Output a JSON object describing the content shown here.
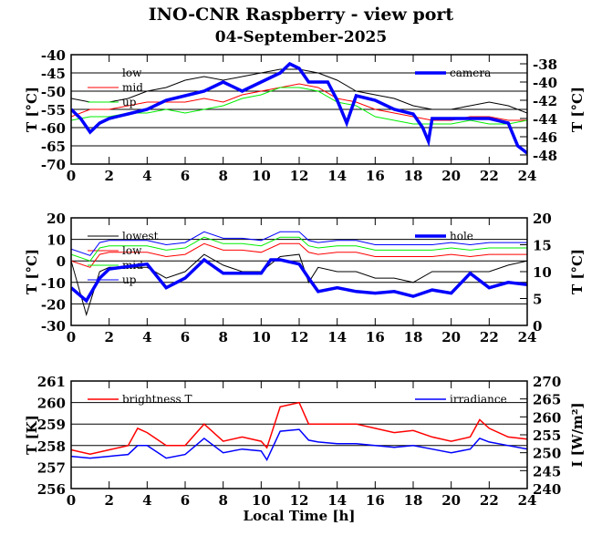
{
  "title": "INO-CNR Raspberry - view port",
  "subtitle": "04-September-2025",
  "chart_data": [
    {
      "type": "line",
      "xlabel": "",
      "ylabel": "T [°C]",
      "ylabel_right": "T [°C]",
      "xlim": [
        0,
        24
      ],
      "ylim": [
        -70,
        -40
      ],
      "ylim_right": [
        -49,
        -37
      ],
      "xticks": [
        0,
        2,
        4,
        6,
        8,
        10,
        12,
        14,
        16,
        18,
        20,
        22,
        24
      ],
      "yticks": [
        -70,
        -65,
        -60,
        -55,
        -50,
        -45,
        -40
      ],
      "yticks_right": [
        -48,
        -46,
        -44,
        -42,
        -40,
        -38
      ],
      "grid": "horizontal",
      "series": [
        {
          "name": "low",
          "axis": "left",
          "color": "#000000",
          "width": 1,
          "legend": "left",
          "x": [
            0,
            1,
            2,
            3,
            4,
            5,
            6,
            7,
            8,
            9,
            10,
            11,
            12,
            13,
            14,
            15,
            16,
            17,
            18,
            19,
            20,
            21,
            22,
            23,
            24
          ],
          "y": [
            -52,
            -53,
            -53,
            -52,
            -50,
            -49,
            -47,
            -46,
            -47,
            -46,
            -45,
            -44,
            -44,
            -45,
            -47,
            -50,
            -51,
            -52,
            -54,
            -55,
            -55,
            -54,
            -53,
            -54,
            -56
          ]
        },
        {
          "name": "mid",
          "axis": "left",
          "color": "#ff0000",
          "width": 1,
          "legend": "left",
          "x": [
            0,
            1,
            2,
            3,
            4,
            5,
            6,
            7,
            8,
            9,
            10,
            11,
            12,
            13,
            14,
            15,
            16,
            17,
            18,
            19,
            20,
            21,
            22,
            23,
            24
          ],
          "y": [
            -57,
            -55,
            -55,
            -54,
            -53,
            -53,
            -53,
            -52,
            -53,
            -51,
            -50,
            -49,
            -48,
            -49,
            -52,
            -53,
            -55,
            -56,
            -57,
            -58,
            -58,
            -57,
            -57,
            -58,
            -58
          ]
        },
        {
          "name": "up",
          "axis": "left",
          "color": "#00ee00",
          "width": 1,
          "legend": "left",
          "x": [
            0,
            1,
            2,
            3,
            4,
            5,
            6,
            7,
            8,
            9,
            10,
            11,
            12,
            13,
            14,
            15,
            16,
            17,
            18,
            19,
            20,
            21,
            22,
            23,
            24
          ],
          "y": [
            -58,
            -57,
            -57,
            -56,
            -56,
            -55,
            -56,
            -55,
            -54,
            -52,
            -51,
            -49,
            -49,
            -50,
            -53,
            -54,
            -57,
            -58,
            -59,
            -59,
            -59,
            -58,
            -59,
            -59,
            -58
          ]
        },
        {
          "name": "camera",
          "axis": "right",
          "color": "#0000ff",
          "width": 3.5,
          "legend": "right",
          "x": [
            0,
            0.5,
            1,
            1.5,
            2,
            3,
            4,
            5,
            6,
            7,
            8,
            9,
            10,
            11,
            11.5,
            12,
            12.5,
            13,
            13.5,
            14,
            14.5,
            15,
            16,
            17,
            18,
            18.5,
            18.8,
            19,
            19.5,
            20,
            21,
            22,
            23,
            23.5,
            24
          ],
          "y": [
            -43,
            -44,
            -45.5,
            -44.5,
            -44,
            -43.5,
            -43,
            -42,
            -41.5,
            -41,
            -40,
            -41,
            -40,
            -39,
            -38,
            -38.5,
            -40,
            -40,
            -40,
            -42,
            -44.5,
            -41.5,
            -42,
            -43,
            -43.5,
            -45,
            -46.5,
            -44,
            -44,
            -44,
            -44,
            -44,
            -44.5,
            -47,
            -47.8
          ]
        }
      ]
    },
    {
      "type": "line",
      "xlabel": "",
      "ylabel": "T [°C]",
      "ylabel_right": "T [°C]",
      "xlim": [
        0,
        24
      ],
      "ylim": [
        -30,
        20
      ],
      "ylim_right": [
        0,
        20
      ],
      "xticks": [
        0,
        2,
        4,
        6,
        8,
        10,
        12,
        14,
        16,
        18,
        20,
        22,
        24
      ],
      "yticks": [
        -30,
        -20,
        -10,
        0,
        10,
        20
      ],
      "yticks_right": [
        0,
        5,
        10,
        15,
        20
      ],
      "grid": "horizontal",
      "series": [
        {
          "name": "lowest",
          "axis": "left",
          "color": "#000000",
          "width": 1,
          "legend": "left",
          "x": [
            0,
            0.8,
            1.5,
            2,
            4,
            5,
            6,
            7,
            8,
            9,
            10,
            11,
            12,
            12.5,
            13,
            14,
            15,
            16,
            17,
            18,
            19,
            20,
            21,
            22,
            23,
            24
          ],
          "y": [
            0,
            -25,
            -5,
            -3,
            -3,
            -8,
            -5,
            3,
            -2,
            -5,
            -5,
            2,
            3,
            -10,
            -3,
            -5,
            -5,
            -8,
            -8,
            -10,
            -5,
            -5,
            -5,
            -5,
            -2,
            0
          ]
        },
        {
          "name": "low",
          "axis": "left",
          "color": "#ff0000",
          "width": 1,
          "legend": "left",
          "x": [
            0,
            1,
            1.5,
            2,
            4,
            5,
            6,
            7,
            8,
            9,
            10,
            11,
            12,
            12.5,
            13,
            14,
            15,
            16,
            17,
            18,
            19,
            20,
            21,
            22,
            23,
            24
          ],
          "y": [
            0,
            -3,
            3,
            4,
            4,
            2,
            3,
            8,
            5,
            5,
            4,
            8,
            8,
            4,
            3,
            4,
            4,
            2,
            2,
            2,
            2,
            3,
            2,
            3,
            3,
            3
          ]
        },
        {
          "name": "mid",
          "axis": "left",
          "color": "#00ee00",
          "width": 1,
          "legend": "left",
          "x": [
            0,
            1,
            1.5,
            2,
            4,
            5,
            6,
            7,
            8,
            9,
            10,
            11,
            12,
            12.5,
            13,
            14,
            15,
            16,
            17,
            18,
            19,
            20,
            21,
            22,
            23,
            24
          ],
          "y": [
            3,
            0,
            6,
            7,
            7,
            5,
            6,
            11,
            8,
            8,
            7,
            11,
            11,
            7,
            6,
            7,
            7,
            5,
            5,
            5,
            5,
            6,
            5,
            6,
            6,
            6
          ]
        },
        {
          "name": "up",
          "axis": "left",
          "color": "#0000ff",
          "width": 1,
          "legend": "left",
          "x": [
            0,
            1,
            1.5,
            2,
            4,
            5,
            6,
            7,
            8,
            9,
            10,
            11,
            12,
            12.5,
            13,
            14,
            15,
            16,
            17,
            18,
            19,
            20,
            21,
            22,
            23,
            24
          ],
          "y": [
            5.5,
            2.5,
            8.5,
            9.5,
            9.5,
            7.5,
            8.5,
            13.5,
            10.5,
            10.5,
            9.5,
            13.5,
            13.5,
            9.5,
            8.5,
            9.5,
            9.5,
            7.5,
            7.5,
            7.5,
            7.5,
            8.5,
            7.5,
            8.5,
            8.5,
            8.5
          ]
        },
        {
          "name": "hole",
          "axis": "right",
          "color": "#0000ff",
          "width": 3.5,
          "legend": "right",
          "x": [
            0,
            0.8,
            1.5,
            2,
            4,
            5,
            6,
            7,
            8,
            9,
            10,
            10.5,
            11,
            12,
            12.5,
            13,
            14,
            15,
            16,
            17,
            18,
            19,
            20,
            21,
            22,
            23,
            24
          ],
          "y": [
            7,
            4.6,
            8.8,
            10.5,
            11.4,
            7,
            8.8,
            12.2,
            9.7,
            9.7,
            9.7,
            12.2,
            12.2,
            11.4,
            8.8,
            6.3,
            7,
            6.3,
            6,
            6.3,
            5.4,
            6.6,
            6,
            9.7,
            7,
            8,
            7.6
          ]
        }
      ]
    },
    {
      "type": "line",
      "xlabel": "Local Time [h]",
      "ylabel": "T [K]",
      "ylabel_right": "I [W/m²]",
      "xlim": [
        0,
        24
      ],
      "ylim": [
        256,
        261
      ],
      "ylim_right": [
        240,
        270
      ],
      "xticks": [
        0,
        2,
        4,
        6,
        8,
        10,
        12,
        14,
        16,
        18,
        20,
        22,
        24
      ],
      "yticks": [
        256,
        257,
        258,
        259,
        260,
        261
      ],
      "yticks_right": [
        240,
        245,
        250,
        255,
        260,
        265,
        270
      ],
      "grid": "horizontal",
      "series": [
        {
          "name": "brightness T",
          "axis": "left",
          "color": "#ff0000",
          "width": 1.5,
          "legend": "left",
          "x": [
            0,
            1,
            2,
            3,
            3.5,
            4,
            5,
            6,
            7,
            8,
            9,
            10,
            10.3,
            11,
            12,
            12.5,
            13,
            14,
            15,
            16,
            17,
            18,
            19,
            20,
            21,
            21.5,
            22,
            23,
            24
          ],
          "y": [
            257.8,
            257.6,
            257.8,
            258,
            258.8,
            258.6,
            258,
            258,
            259,
            258.2,
            258.4,
            258.2,
            257.9,
            259.8,
            260,
            259,
            259,
            259,
            259,
            258.8,
            258.6,
            258.7,
            258.4,
            258.2,
            258.4,
            259.2,
            258.8,
            258.4,
            258.3
          ]
        },
        {
          "name": "irradiance",
          "axis": "right",
          "color": "#0000ff",
          "width": 1.5,
          "legend": "right",
          "x": [
            0,
            1,
            2,
            3,
            3.5,
            4,
            5,
            6,
            7,
            8,
            9,
            10,
            10.3,
            11,
            12,
            12.5,
            13,
            14,
            15,
            16,
            17,
            18,
            19,
            20,
            21,
            21.5,
            22,
            23,
            24
          ],
          "y": [
            249,
            248.5,
            249,
            249.5,
            252,
            252,
            248.5,
            249.5,
            254,
            250,
            251,
            250.5,
            248,
            256,
            256.5,
            253.5,
            253,
            252.5,
            252.5,
            252,
            251.5,
            252,
            251,
            250,
            251,
            254,
            253,
            252,
            251
          ]
        }
      ]
    }
  ]
}
